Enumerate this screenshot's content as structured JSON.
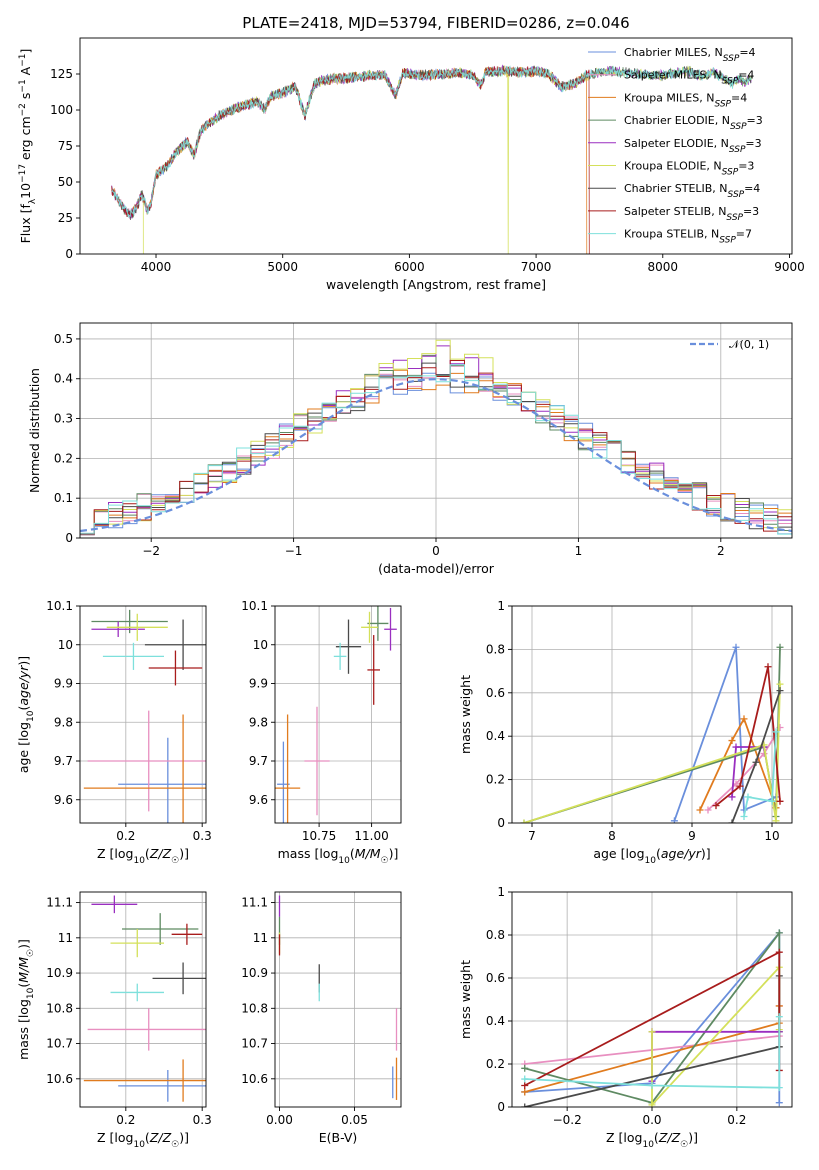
{
  "figure": {
    "title": "PLATE=2418, MJD=53794, FIBERID=0286, z=0.046"
  },
  "colors": {
    "Chabrier MILES": "#6a8fdc",
    "Salpeter MILES": "#e88fc0",
    "Kroupa MILES": "#e07b1e",
    "Chabrier ELODIE": "#5e8a62",
    "Salpeter ELODIE": "#9a2fc0",
    "Kroupa ELODIE": "#d4e05a",
    "Chabrier STELIB": "#4a4a4a",
    "Salpeter STELIB": "#a81c1c",
    "Kroupa STELIB": "#7ee0dc",
    "normal": "#6a8fdc"
  },
  "chart_data": [
    {
      "id": "spectrum",
      "type": "line",
      "title": "PLATE=2418, MJD=53794, FIBERID=0286, z=0.046",
      "xlabel": "wavelength [Angstrom, rest frame]",
      "ylabel": "Flux [f_λ 10^-17 erg cm^-2 s^-1 A^-1]",
      "xlim": [
        3400,
        9020
      ],
      "ylim": [
        0,
        150
      ],
      "xticks": [
        4000,
        5000,
        6000,
        7000,
        8000,
        9000
      ],
      "yticks": [
        0,
        25,
        50,
        75,
        100,
        125
      ],
      "legend_position": "upper-right",
      "series": [
        {
          "name": "Chabrier MILES, N_SSP=4",
          "x": [
            3650,
            4500,
            7400
          ],
          "dropout": null
        },
        {
          "name": "Salpeter MILES, N_SSP=4",
          "x": [
            3650,
            4500,
            7400
          ],
          "dropout": null
        },
        {
          "name": "Kroupa MILES, N_SSP=4",
          "x": [
            3650,
            4500,
            7400
          ],
          "dropout": 7400
        },
        {
          "name": "Chabrier ELODIE, N_SSP=3",
          "x": [
            3650,
            4500,
            8700
          ],
          "dropout": null
        },
        {
          "name": "Salpeter ELODIE, N_SSP=3",
          "x": [
            3650,
            4500,
            8700
          ],
          "dropout": null
        },
        {
          "name": "Kroupa ELODIE, N_SSP=3",
          "x": [
            3900,
            4500,
            8700
          ],
          "dropout": 6780
        },
        {
          "name": "Chabrier STELIB, N_SSP=4",
          "x": [
            3650,
            4500,
            8700
          ],
          "dropout": null
        },
        {
          "name": "Salpeter STELIB, N_SSP=3",
          "x": [
            3650,
            4500,
            7420
          ],
          "dropout": 7420
        },
        {
          "name": "Kroupa STELIB, N_SSP=7",
          "x": [
            3650,
            4500,
            8700
          ],
          "dropout": null
        }
      ],
      "flux_profile": [
        [
          3650,
          45
        ],
        [
          3700,
          38
        ],
        [
          3760,
          30
        ],
        [
          3800,
          27
        ],
        [
          3850,
          33
        ],
        [
          3890,
          42
        ],
        [
          3930,
          30
        ],
        [
          3960,
          35
        ],
        [
          4000,
          55
        ],
        [
          4100,
          62
        ],
        [
          4150,
          70
        ],
        [
          4200,
          74
        ],
        [
          4250,
          78
        ],
        [
          4300,
          68
        ],
        [
          4350,
          85
        ],
        [
          4400,
          90
        ],
        [
          4450,
          92
        ],
        [
          4500,
          96
        ],
        [
          4600,
          100
        ],
        [
          4700,
          103
        ],
        [
          4800,
          106
        ],
        [
          4860,
          100
        ],
        [
          4900,
          109
        ],
        [
          5000,
          112
        ],
        [
          5100,
          116
        ],
        [
          5175,
          96
        ],
        [
          5250,
          118
        ],
        [
          5300,
          120
        ],
        [
          5400,
          122
        ],
        [
          5500,
          122
        ],
        [
          5600,
          123
        ],
        [
          5700,
          124
        ],
        [
          5800,
          125
        ],
        [
          5890,
          110
        ],
        [
          5950,
          126
        ],
        [
          6000,
          125
        ],
        [
          6100,
          124
        ],
        [
          6200,
          125
        ],
        [
          6300,
          125
        ],
        [
          6400,
          126
        ],
        [
          6500,
          124
        ],
        [
          6563,
          117
        ],
        [
          6600,
          126
        ],
        [
          6700,
          127
        ],
        [
          6800,
          127
        ],
        [
          6900,
          126
        ],
        [
          7000,
          127
        ],
        [
          7100,
          125
        ],
        [
          7200,
          116
        ],
        [
          7300,
          118
        ],
        [
          7400,
          124
        ],
        [
          7500,
          126
        ],
        [
          7600,
          127
        ],
        [
          7700,
          126
        ],
        [
          7800,
          125
        ],
        [
          7900,
          124
        ],
        [
          8000,
          124
        ],
        [
          8100,
          126
        ],
        [
          8200,
          127
        ],
        [
          8300,
          124
        ],
        [
          8400,
          126
        ],
        [
          8500,
          121
        ],
        [
          8550,
          118
        ],
        [
          8600,
          122
        ],
        [
          8650,
          119
        ],
        [
          8700,
          122
        ]
      ]
    },
    {
      "id": "residuals",
      "type": "histogram",
      "xlabel": "(data-model)/error",
      "ylabel": "Normed distribution",
      "xlim": [
        -2.5,
        2.5
      ],
      "ylim": [
        0,
        0.54
      ],
      "xticks": [
        -2,
        -1,
        0,
        1,
        2
      ],
      "yticks": [
        0.0,
        0.1,
        0.2,
        0.3,
        0.4,
        0.5
      ],
      "legend": [
        "𝒩(0, 1)"
      ],
      "legend_position": "upper-right",
      "bin_width": 0.1,
      "series": [
        {
          "name": "Chabrier MILES",
          "peak": 0.42,
          "seed": 1
        },
        {
          "name": "Salpeter MILES",
          "peak": 0.43,
          "seed": 2
        },
        {
          "name": "Kroupa MILES",
          "peak": 0.42,
          "seed": 3
        },
        {
          "name": "Chabrier ELODIE",
          "peak": 0.46,
          "seed": 4
        },
        {
          "name": "Salpeter ELODIE",
          "peak": 0.48,
          "seed": 5
        },
        {
          "name": "Kroupa ELODIE",
          "peak": 0.51,
          "seed": 6
        },
        {
          "name": "Chabrier STELIB",
          "peak": 0.43,
          "seed": 7
        },
        {
          "name": "Salpeter STELIB",
          "peak": 0.44,
          "seed": 8
        },
        {
          "name": "Kroupa STELIB",
          "peak": 0.44,
          "seed": 9
        }
      ]
    },
    {
      "id": "age_vs_Z",
      "type": "errorbar",
      "xlabel": "Z [log10(Z/Z☉)]",
      "ylabel": "age  [log10(age/yr)]",
      "xlim": [
        0.14,
        0.305
      ],
      "ylim": [
        9.54,
        10.1
      ],
      "xticks": [
        0.2,
        0.3
      ],
      "yticks": [
        9.6,
        9.7,
        9.8,
        9.9,
        10.0,
        10.1
      ],
      "points": [
        {
          "name": "Chabrier MILES",
          "x": 0.255,
          "y": 9.64,
          "xerr": 0.065,
          "yerr": 0.12
        },
        {
          "name": "Salpeter MILES",
          "x": 0.23,
          "y": 9.7,
          "xerr": 0.08,
          "yerr": 0.13
        },
        {
          "name": "Kroupa MILES",
          "x": 0.275,
          "y": 9.63,
          "xerr": 0.13,
          "yerr": 0.19
        },
        {
          "name": "Chabrier ELODIE",
          "x": 0.205,
          "y": 10.06,
          "xerr": 0.05,
          "yerr": 0.03
        },
        {
          "name": "Salpeter ELODIE",
          "x": 0.19,
          "y": 10.04,
          "xerr": 0.035,
          "yerr": 0.02
        },
        {
          "name": "Kroupa ELODIE",
          "x": 0.215,
          "y": 10.045,
          "xerr": 0.04,
          "yerr": 0.035
        },
        {
          "name": "Chabrier STELIB",
          "x": 0.275,
          "y": 10.0,
          "xerr": 0.05,
          "yerr": 0.065
        },
        {
          "name": "Salpeter STELIB",
          "x": 0.265,
          "y": 9.94,
          "xerr": 0.035,
          "yerr": 0.045
        },
        {
          "name": "Kroupa STELIB",
          "x": 0.21,
          "y": 9.97,
          "xerr": 0.04,
          "yerr": 0.035
        }
      ]
    },
    {
      "id": "age_vs_mass",
      "type": "errorbar",
      "xlabel": "mass [log10(M/M☉)]",
      "ylabel": "",
      "xlim": [
        10.54,
        11.14
      ],
      "ylim": [
        9.54,
        10.1
      ],
      "xticks": [
        10.75,
        11.0
      ],
      "xticklabels": [
        "10.75",
        "11.00"
      ],
      "yticks": [
        9.6,
        9.7,
        9.8,
        9.9,
        10.0,
        10.1
      ],
      "points": [
        {
          "name": "Chabrier MILES",
          "x": 10.58,
          "y": 9.64,
          "xerr": 0.03,
          "yerr": 0.11
        },
        {
          "name": "Salpeter MILES",
          "x": 10.74,
          "y": 9.7,
          "xerr": 0.06,
          "yerr": 0.14
        },
        {
          "name": "Kroupa MILES",
          "x": 10.6,
          "y": 9.63,
          "xerr": 0.06,
          "yerr": 0.19
        },
        {
          "name": "Chabrier ELODIE",
          "x": 11.03,
          "y": 10.055,
          "xerr": 0.05,
          "yerr": 0.045
        },
        {
          "name": "Salpeter ELODIE",
          "x": 11.09,
          "y": 10.04,
          "xerr": 0.03,
          "yerr": 0.055
        },
        {
          "name": "Kroupa ELODIE",
          "x": 10.99,
          "y": 10.045,
          "xerr": 0.04,
          "yerr": 0.04
        },
        {
          "name": "Chabrier STELIB",
          "x": 10.89,
          "y": 9.995,
          "xerr": 0.06,
          "yerr": 0.07
        },
        {
          "name": "Salpeter STELIB",
          "x": 11.01,
          "y": 9.935,
          "xerr": 0.03,
          "yerr": 0.09
        },
        {
          "name": "Kroupa STELIB",
          "x": 10.85,
          "y": 9.97,
          "xerr": 0.03,
          "yerr": 0.035
        }
      ]
    },
    {
      "id": "weight_vs_age",
      "type": "line",
      "xlabel": "age  [log10(age/yr)]",
      "ylabel": "mass weight",
      "xlim": [
        6.75,
        10.25
      ],
      "ylim": [
        0,
        1.0
      ],
      "xticks": [
        7,
        8,
        9,
        10
      ],
      "yticks": [
        0.0,
        0.2,
        0.4,
        0.6,
        0.8,
        1.0
      ],
      "series": [
        {
          "name": "Chabrier MILES",
          "x": [
            8.78,
            9.55,
            9.65,
            10.05
          ],
          "y": [
            0.01,
            0.81,
            0.06,
            0.12
          ]
        },
        {
          "name": "Salpeter MILES",
          "x": [
            9.2,
            9.55,
            9.9,
            10.1
          ],
          "y": [
            0.06,
            0.18,
            0.32,
            0.44
          ]
        },
        {
          "name": "Kroupa MILES",
          "x": [
            9.1,
            9.5,
            9.65,
            10.05
          ],
          "y": [
            0.06,
            0.38,
            0.48,
            0.07
          ]
        },
        {
          "name": "Chabrier ELODIE",
          "x": [
            6.9,
            9.9,
            10.05,
            10.1
          ],
          "y": [
            0.0,
            0.35,
            0.03,
            0.81
          ]
        },
        {
          "name": "Salpeter ELODIE",
          "x": [
            9.5,
            9.55,
            9.9
          ],
          "y": [
            0.12,
            0.35,
            0.35
          ]
        },
        {
          "name": "Kroupa ELODIE",
          "x": [
            6.9,
            9.9,
            10.05,
            10.1
          ],
          "y": [
            0.0,
            0.36,
            0.01,
            0.64
          ]
        },
        {
          "name": "Chabrier STELIB",
          "x": [
            9.5,
            9.8,
            10.1
          ],
          "y": [
            0.0,
            0.28,
            0.61
          ]
        },
        {
          "name": "Salpeter STELIB",
          "x": [
            9.3,
            9.6,
            9.95,
            10.1
          ],
          "y": [
            0.08,
            0.17,
            0.72,
            0.1
          ]
        },
        {
          "name": "Kroupa STELIB",
          "x": [
            9.65,
            9.7,
            10.0,
            10.05
          ],
          "y": [
            0.03,
            0.12,
            0.1,
            0.42
          ]
        }
      ]
    },
    {
      "id": "mass_vs_Z",
      "type": "errorbar",
      "xlabel": "Z [log10(Z/Z☉)]",
      "ylabel": "mass [log10(M/M☉)]",
      "xlim": [
        0.14,
        0.305
      ],
      "ylim": [
        10.52,
        11.13
      ],
      "xticks": [
        0.2,
        0.3
      ],
      "yticks": [
        10.6,
        10.7,
        10.8,
        10.9,
        11.0,
        11.1
      ],
      "points": [
        {
          "name": "Chabrier MILES",
          "x": 0.255,
          "y": 10.58,
          "xerr": 0.065,
          "yerr": 0.045
        },
        {
          "name": "Salpeter MILES",
          "x": 0.23,
          "y": 10.74,
          "xerr": 0.08,
          "yerr": 0.06
        },
        {
          "name": "Kroupa MILES",
          "x": 0.275,
          "y": 10.595,
          "xerr": 0.13,
          "yerr": 0.06
        },
        {
          "name": "Chabrier ELODIE",
          "x": 0.245,
          "y": 11.025,
          "xerr": 0.05,
          "yerr": 0.045
        },
        {
          "name": "Salpeter ELODIE",
          "x": 0.185,
          "y": 11.095,
          "xerr": 0.03,
          "yerr": 0.025
        },
        {
          "name": "Kroupa ELODIE",
          "x": 0.215,
          "y": 10.985,
          "xerr": 0.035,
          "yerr": 0.04
        },
        {
          "name": "Chabrier STELIB",
          "x": 0.275,
          "y": 10.885,
          "xerr": 0.04,
          "yerr": 0.045
        },
        {
          "name": "Salpeter STELIB",
          "x": 0.28,
          "y": 11.01,
          "xerr": 0.02,
          "yerr": 0.03
        },
        {
          "name": "Kroupa STELIB",
          "x": 0.215,
          "y": 10.845,
          "xerr": 0.035,
          "yerr": 0.025
        }
      ]
    },
    {
      "id": "mass_vs_ebv",
      "type": "errorbar",
      "xlabel": "E(B-V)",
      "ylabel": "",
      "xlim": [
        -0.003,
        0.081
      ],
      "ylim": [
        10.52,
        11.13
      ],
      "xticks": [
        0.0,
        0.05
      ],
      "xticklabels": [
        "0.00",
        "0.05"
      ],
      "yticks": [
        10.6,
        10.7,
        10.8,
        10.9,
        11.0,
        11.1
      ],
      "points": [
        {
          "name": "Chabrier MILES",
          "x": 0.0755,
          "y": 10.59,
          "xerr": 0,
          "yerr": 0.045
        },
        {
          "name": "Salpeter MILES",
          "x": 0.078,
          "y": 10.74,
          "xerr": 0,
          "yerr": 0.06
        },
        {
          "name": "Kroupa MILES",
          "x": 0.078,
          "y": 10.6,
          "xerr": 0,
          "yerr": 0.06
        },
        {
          "name": "Chabrier ELODIE",
          "x": 0.0,
          "y": 11.02,
          "xerr": 0,
          "yerr": 0.04
        },
        {
          "name": "Salpeter ELODIE",
          "x": 0.0,
          "y": 11.09,
          "xerr": 0,
          "yerr": 0.03
        },
        {
          "name": "Kroupa ELODIE",
          "x": 0.0,
          "y": 10.985,
          "xerr": 0,
          "yerr": 0.03
        },
        {
          "name": "Chabrier STELIB",
          "x": 0.0265,
          "y": 10.885,
          "xerr": 0,
          "yerr": 0.04
        },
        {
          "name": "Salpeter STELIB",
          "x": 0.0,
          "y": 10.98,
          "xerr": 0,
          "yerr": 0.03
        },
        {
          "name": "Kroupa STELIB",
          "x": 0.0265,
          "y": 10.845,
          "xerr": 0,
          "yerr": 0.025
        }
      ]
    },
    {
      "id": "weight_vs_Z",
      "type": "line",
      "xlabel": "Z [log10(Z/Z☉)]",
      "ylabel": "mass weight",
      "xlim": [
        -0.33,
        0.33
      ],
      "ylim": [
        0,
        1.0
      ],
      "xticks": [
        -0.2,
        0.0,
        0.2
      ],
      "xticklabels": [
        "−0.2",
        "0.0",
        "0.2"
      ],
      "yticks": [
        0.0,
        0.2,
        0.4,
        0.6,
        0.8,
        1.0
      ],
      "series": [
        {
          "name": "Chabrier MILES",
          "x": [
            -0.3,
            0.0,
            0.3,
            0.3
          ],
          "y": [
            0.07,
            0.11,
            0.81,
            0.02
          ]
        },
        {
          "name": "Salpeter MILES",
          "x": [
            -0.3,
            0.3,
            0.3
          ],
          "y": [
            0.2,
            0.33,
            0.47
          ]
        },
        {
          "name": "Kroupa MILES",
          "x": [
            -0.3,
            0.3,
            0.3
          ],
          "y": [
            0.07,
            0.39,
            0.47
          ]
        },
        {
          "name": "Chabrier ELODIE",
          "x": [
            -0.3,
            0.0,
            0.3,
            0.3
          ],
          "y": [
            0.18,
            0.02,
            0.81,
            0.35
          ]
        },
        {
          "name": "Salpeter ELODIE",
          "x": [
            0.0,
            0.0,
            0.3
          ],
          "y": [
            0.12,
            0.35,
            0.35
          ]
        },
        {
          "name": "Kroupa ELODIE",
          "x": [
            0.0,
            0.0,
            0.3,
            0.3
          ],
          "y": [
            0.35,
            0.01,
            0.65,
            0.36
          ]
        },
        {
          "name": "Chabrier STELIB",
          "x": [
            -0.3,
            0.3,
            0.3
          ],
          "y": [
            0.0,
            0.28,
            0.61
          ]
        },
        {
          "name": "Salpeter STELIB",
          "x": [
            -0.3,
            0.3,
            0.3
          ],
          "y": [
            0.1,
            0.72,
            0.17
          ]
        },
        {
          "name": "Kroupa STELIB",
          "x": [
            -0.3,
            0.0,
            0.3,
            0.3
          ],
          "y": [
            0.13,
            0.1,
            0.09,
            0.42
          ]
        }
      ]
    }
  ]
}
